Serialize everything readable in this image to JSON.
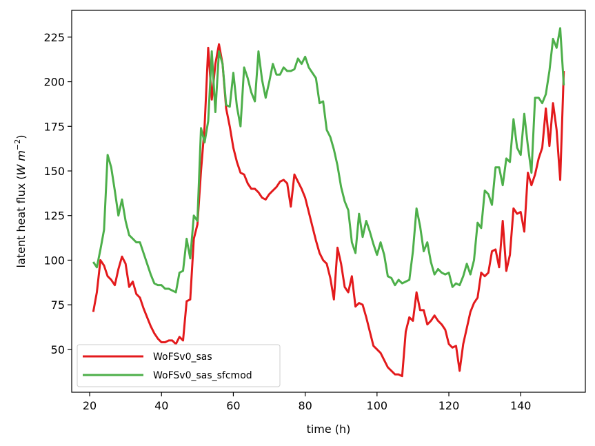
{
  "chart_data": {
    "type": "line",
    "xlabel": "time (h)",
    "ylabel_main": "latent heat flux (",
    "ylabel_units": "W m",
    "ylabel_exp": "−2",
    "ylabel_close": ")",
    "xlim": [
      15,
      158
    ],
    "ylim": [
      26,
      240
    ],
    "xticks": [
      20,
      40,
      60,
      80,
      100,
      120,
      140
    ],
    "yticks": [
      50,
      75,
      100,
      125,
      150,
      175,
      200,
      225
    ],
    "legend_position": "lower-left",
    "series": [
      {
        "name": "WoFSv0_sas",
        "color": "#e31a1c",
        "x": [
          21,
          22,
          23,
          24,
          25,
          26,
          27,
          28,
          29,
          30,
          31,
          32,
          33,
          34,
          35,
          36,
          37,
          38,
          39,
          40,
          41,
          42,
          43,
          44,
          45,
          46,
          47,
          48,
          49,
          50,
          51,
          52,
          53,
          54,
          55,
          56,
          57,
          58,
          59,
          60,
          61,
          62,
          63,
          64,
          65,
          66,
          67,
          68,
          69,
          70,
          71,
          72,
          73,
          74,
          75,
          76,
          77,
          78,
          79,
          80,
          81,
          82,
          83,
          84,
          85,
          86,
          87,
          88,
          89,
          90,
          91,
          92,
          93,
          94,
          95,
          96,
          97,
          98,
          99,
          100,
          101,
          102,
          103,
          104,
          105,
          106,
          107,
          108,
          109,
          110,
          111,
          112,
          113,
          114,
          115,
          116,
          117,
          118,
          119,
          120,
          121,
          122,
          123,
          124,
          125,
          126,
          127,
          128,
          129,
          130,
          131,
          132,
          133,
          134,
          135,
          136,
          137,
          138,
          139,
          140,
          141,
          142,
          143,
          144,
          145,
          146,
          147,
          148,
          149,
          150,
          151,
          152
        ],
        "values": [
          71,
          82,
          100,
          97,
          91,
          89,
          86,
          95,
          102,
          98,
          85,
          88,
          81,
          79,
          73,
          68,
          63,
          59,
          56,
          54,
          54,
          55,
          55,
          53,
          57,
          55,
          77,
          78,
          112,
          120,
          150,
          175,
          219,
          190,
          210,
          221,
          210,
          185,
          175,
          163,
          155,
          149,
          148,
          143,
          140,
          140,
          138,
          135,
          134,
          137,
          139,
          141,
          144,
          145,
          143,
          130,
          148,
          144,
          140,
          135,
          127,
          119,
          111,
          104,
          100,
          98,
          90,
          78,
          107,
          98,
          85,
          82,
          91,
          74,
          76,
          75,
          68,
          60,
          52,
          50,
          48,
          44,
          40,
          38,
          36,
          36,
          35,
          60,
          68,
          66,
          82,
          72,
          72,
          64,
          66,
          69,
          66,
          64,
          61,
          53,
          51,
          52,
          38,
          53,
          62,
          71,
          76,
          79,
          93,
          91,
          93,
          105,
          106,
          96,
          122,
          94,
          103,
          129,
          126,
          127,
          116,
          149,
          142,
          148,
          157,
          163,
          185,
          164,
          188,
          173,
          145,
          206
        ]
      },
      {
        "name": "WoFSv0_sas_sfcmod",
        "color": "#4daf4a",
        "x": [
          21,
          22,
          23,
          24,
          25,
          26,
          27,
          28,
          29,
          30,
          31,
          32,
          33,
          34,
          35,
          36,
          37,
          38,
          39,
          40,
          41,
          42,
          43,
          44,
          45,
          46,
          47,
          48,
          49,
          50,
          51,
          52,
          53,
          54,
          55,
          56,
          57,
          58,
          59,
          60,
          61,
          62,
          63,
          64,
          65,
          66,
          67,
          68,
          69,
          70,
          71,
          72,
          73,
          74,
          75,
          76,
          77,
          78,
          79,
          80,
          81,
          82,
          83,
          84,
          85,
          86,
          87,
          88,
          89,
          90,
          91,
          92,
          93,
          94,
          95,
          96,
          97,
          98,
          99,
          100,
          101,
          102,
          103,
          104,
          105,
          106,
          107,
          108,
          109,
          110,
          111,
          112,
          113,
          114,
          115,
          116,
          117,
          118,
          119,
          120,
          121,
          122,
          123,
          124,
          125,
          126,
          127,
          128,
          129,
          130,
          131,
          132,
          133,
          134,
          135,
          136,
          137,
          138,
          139,
          140,
          141,
          142,
          143,
          144,
          145,
          146,
          147,
          148,
          149,
          150,
          151,
          152
        ],
        "values": [
          99,
          96,
          106,
          117,
          159,
          152,
          139,
          125,
          134,
          122,
          114,
          112,
          110,
          110,
          104,
          98,
          92,
          87,
          86,
          86,
          84,
          84,
          83,
          82,
          93,
          94,
          112,
          101,
          125,
          122,
          174,
          166,
          178,
          217,
          183,
          217,
          210,
          187,
          186,
          205,
          186,
          175,
          208,
          202,
          194,
          189,
          217,
          201,
          191,
          200,
          210,
          204,
          204,
          208,
          206,
          206,
          207,
          213,
          210,
          214,
          208,
          205,
          202,
          188,
          189,
          173,
          169,
          162,
          153,
          141,
          133,
          128,
          110,
          104,
          126,
          113,
          122,
          116,
          109,
          103,
          110,
          103,
          91,
          90,
          86,
          89,
          87,
          88,
          89,
          105,
          129,
          119,
          105,
          110,
          99,
          92,
          95,
          93,
          92,
          93,
          85,
          87,
          86,
          91,
          98,
          92,
          100,
          121,
          118,
          139,
          137,
          131,
          152,
          152,
          142,
          157,
          155,
          179,
          163,
          159,
          182,
          164,
          149,
          191,
          191,
          188,
          193,
          206,
          224,
          219,
          230,
          198
        ]
      }
    ]
  }
}
